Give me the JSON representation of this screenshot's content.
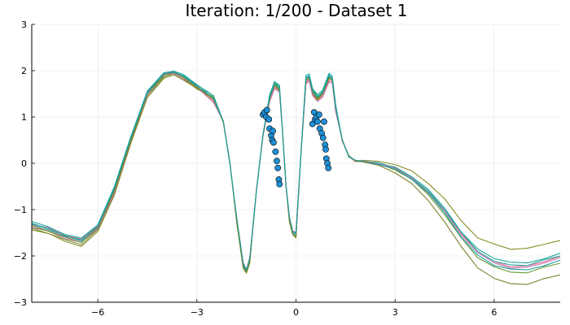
{
  "chart_data": {
    "type": "line",
    "title": "Iteration: 1/200 - Dataset 1",
    "xlabel": "",
    "ylabel": "",
    "xlim": [
      -8,
      8
    ],
    "ylim": [
      -3,
      3
    ],
    "xticks": [
      -6,
      -3,
      0,
      3,
      6
    ],
    "xtick_labels": [
      "−6",
      "−3",
      "0",
      "3",
      "6"
    ],
    "yticks": [
      -3,
      -2,
      -1,
      0,
      1,
      2,
      3
    ],
    "ytick_labels": [
      "−3",
      "−2",
      "−1",
      "0",
      "1",
      "2",
      "3"
    ],
    "grid": true,
    "legend": "none",
    "base_curve": {
      "x": [
        -8,
        -7.5,
        -7,
        -6.5,
        -6,
        -5.5,
        -5,
        -4.5,
        -4,
        -3.7,
        -3.4,
        -3,
        -2.5,
        -2.2,
        -2,
        -1.8,
        -1.6,
        -1.5,
        -1.4,
        -1.2,
        -1,
        -0.8,
        -0.65,
        -0.5,
        -0.4,
        -0.3,
        -0.2,
        -0.1,
        0,
        0.15,
        0.3,
        0.4,
        0.5,
        0.65,
        0.8,
        1,
        1.1,
        1.2,
        1.4,
        1.6,
        1.8,
        2,
        2.5,
        3,
        3.5,
        4,
        4.5,
        5,
        5.5,
        6,
        6.5,
        7,
        7.5,
        8
      ],
      "y": [
        -1.35,
        -1.45,
        -1.6,
        -1.7,
        -1.4,
        -0.6,
        0.5,
        1.5,
        1.9,
        1.95,
        1.85,
        1.65,
        1.4,
        0.9,
        0.0,
        -1.2,
        -2.2,
        -2.33,
        -2.1,
        -0.6,
        0.6,
        1.4,
        1.7,
        1.6,
        0.6,
        -0.5,
        -1.2,
        -1.5,
        -1.55,
        0.2,
        1.8,
        1.85,
        1.55,
        1.4,
        1.5,
        1.85,
        1.8,
        1.2,
        0.5,
        0.15,
        0.05,
        0.05,
        0.0,
        -0.1,
        -0.3,
        -0.6,
        -1.0,
        -1.5,
        -1.9,
        -2.1,
        -2.2,
        -2.2,
        -2.1,
        -2.0
      ]
    },
    "series": [
      {
        "color": "#e26f9e",
        "offsets": {
          "left": 0.05,
          "peak": -0.05,
          "valley": 0.02,
          "tail": -0.02
        }
      },
      {
        "color": "#6c9a3a",
        "offsets": {
          "left": -0.05,
          "peak": 0.03,
          "valley": -0.05,
          "tail": -0.15
        }
      },
      {
        "color": "#1aa89c",
        "offsets": {
          "left": 0.08,
          "peak": 0.08,
          "valley": 0.03,
          "tail": 0.05
        }
      },
      {
        "color": "#8a8a22",
        "offsets": {
          "left": -0.08,
          "peak": -0.02,
          "valley": -0.02,
          "tail": 0.35
        }
      },
      {
        "color": "#2fa7a0",
        "offsets": {
          "left": 0.02,
          "peak": 0.05,
          "valley": 0.0,
          "tail": 0.0
        }
      },
      {
        "color": "#c57aa8",
        "offsets": {
          "left": -0.02,
          "peak": -0.08,
          "valley": 0.05,
          "tail": -0.05
        }
      },
      {
        "color": "#7f7f2a",
        "offsets": {
          "left": 0.0,
          "peak": 0.0,
          "valley": -0.03,
          "tail": -0.4
        }
      },
      {
        "color": "#19a0a0",
        "offsets": {
          "left": 0.04,
          "peak": 0.02,
          "valley": 0.04,
          "tail": -0.1
        }
      }
    ],
    "scatter": {
      "color": "#1f8fd6",
      "edge": "#000000",
      "points": [
        [
          -1.0,
          1.05
        ],
        [
          -0.95,
          1.1
        ],
        [
          -0.9,
          1.0
        ],
        [
          -0.88,
          1.15
        ],
        [
          -0.82,
          0.95
        ],
        [
          -0.8,
          0.75
        ],
        [
          -0.75,
          0.6
        ],
        [
          -0.72,
          0.5
        ],
        [
          -0.7,
          0.7
        ],
        [
          -0.68,
          0.45
        ],
        [
          -0.62,
          0.25
        ],
        [
          -0.58,
          0.05
        ],
        [
          -0.55,
          -0.1
        ],
        [
          -0.52,
          -0.35
        ],
        [
          -0.5,
          -0.45
        ],
        [
          0.5,
          0.85
        ],
        [
          0.55,
          1.1
        ],
        [
          0.58,
          0.95
        ],
        [
          0.62,
          1.0
        ],
        [
          0.65,
          0.9
        ],
        [
          0.7,
          1.05
        ],
        [
          0.72,
          0.75
        ],
        [
          0.78,
          0.65
        ],
        [
          0.82,
          0.55
        ],
        [
          0.85,
          0.9
        ],
        [
          0.88,
          0.4
        ],
        [
          0.9,
          0.3
        ],
        [
          0.92,
          0.1
        ],
        [
          0.95,
          0.0
        ],
        [
          0.98,
          -0.1
        ]
      ]
    }
  }
}
